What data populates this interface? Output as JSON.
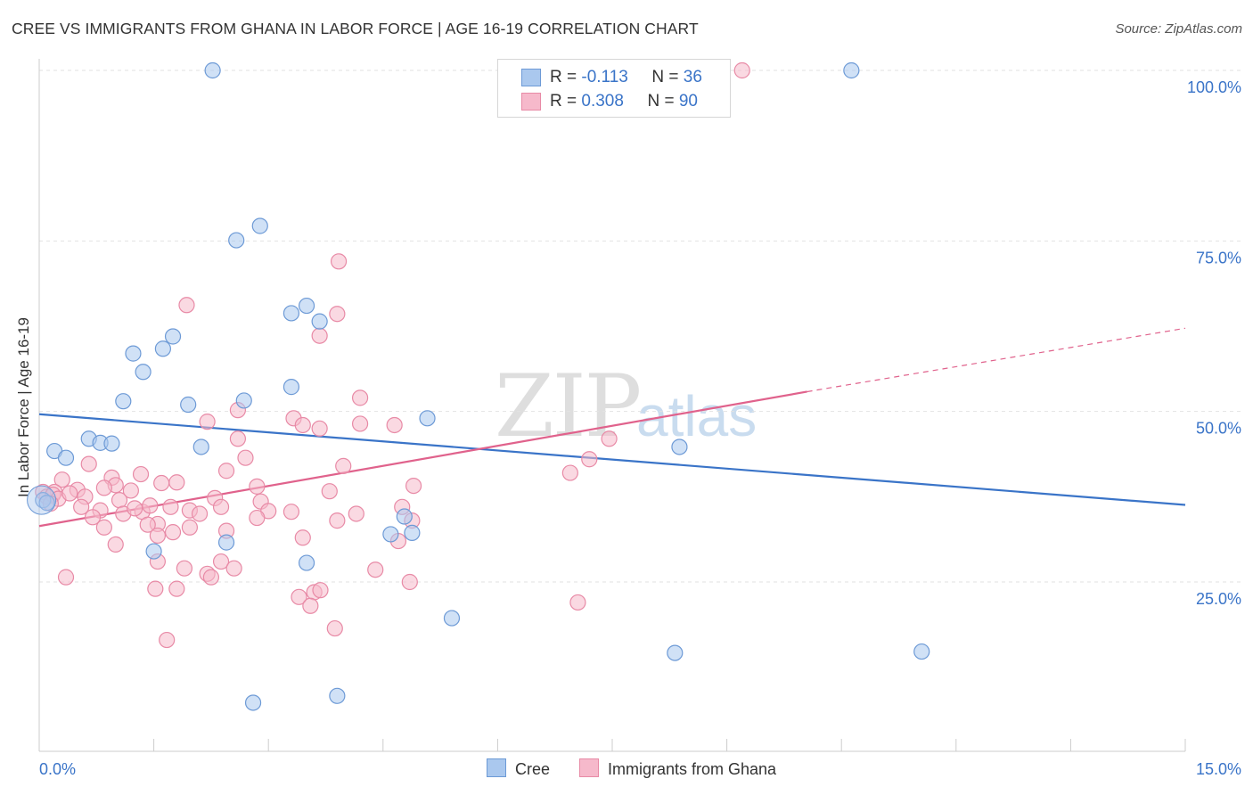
{
  "title": "CREE VS IMMIGRANTS FROM GHANA IN LABOR FORCE | AGE 16-19 CORRELATION CHART",
  "source": "Source: ZipAtlas.com",
  "watermark": {
    "zip": "ZIP",
    "atlas": "atlas"
  },
  "legend": {
    "rows": [
      {
        "r_label": "R = ",
        "r_value": "-0.113",
        "n_label": "N = ",
        "n_value": "36"
      },
      {
        "r_label": "R = ",
        "r_value": "0.308",
        "n_label": "N = ",
        "n_value": "90"
      }
    ]
  },
  "bottom_legend": [
    "Cree",
    "Immigrants from Ghana"
  ],
  "colors": {
    "cree_fill": "#aac8ee",
    "cree_stroke": "#6d9ad6",
    "cree_line": "#3a74c8",
    "ghana_fill": "#f6b9cb",
    "ghana_stroke": "#e88aa6",
    "ghana_line": "#e0628c",
    "axis_text": "#3a74c8",
    "grid": "#e2e2e2"
  },
  "chart_data": {
    "type": "scatter",
    "title": "CREE VS IMMIGRANTS FROM GHANA IN LABOR FORCE | AGE 16-19 CORRELATION CHART",
    "xlabel": "",
    "ylabel": "In Labor Force | Age 16-19",
    "xlim": [
      0,
      15
    ],
    "ylim": [
      0,
      102
    ],
    "x_tick_labels": [
      "0.0%",
      "15.0%"
    ],
    "y_ticks": [
      25,
      50,
      75,
      100
    ],
    "y_tick_labels": [
      "25.0%",
      "50.0%",
      "75.0%",
      "100.0%"
    ],
    "grid": true,
    "legend_placement": "top-center",
    "series": [
      {
        "name": "Cree",
        "r": -0.113,
        "n": 36,
        "trend": {
          "x0": 0,
          "y0": 49.6,
          "x1": 15,
          "y1": 36.3
        },
        "points": [
          [
            2.27,
            100
          ],
          [
            10.63,
            100
          ],
          [
            2.58,
            75.1
          ],
          [
            2.89,
            77.2
          ],
          [
            3.3,
            64.4
          ],
          [
            3.5,
            65.5
          ],
          [
            3.67,
            63.2
          ],
          [
            1.75,
            61.0
          ],
          [
            1.62,
            59.2
          ],
          [
            1.23,
            58.5
          ],
          [
            1.36,
            55.8
          ],
          [
            1.1,
            51.5
          ],
          [
            1.95,
            51.0
          ],
          [
            2.68,
            51.6
          ],
          [
            3.3,
            53.6
          ],
          [
            5.08,
            49.0
          ],
          [
            0.2,
            44.2
          ],
          [
            0.35,
            43.2
          ],
          [
            0.65,
            46.0
          ],
          [
            0.8,
            45.4
          ],
          [
            0.95,
            45.3
          ],
          [
            2.12,
            44.8
          ],
          [
            8.38,
            44.8
          ],
          [
            0.05,
            37.0
          ],
          [
            0.1,
            36.6
          ],
          [
            1.5,
            29.5
          ],
          [
            2.45,
            30.8
          ],
          [
            3.5,
            27.8
          ],
          [
            4.6,
            32.0
          ],
          [
            4.78,
            34.6
          ],
          [
            4.88,
            32.2
          ],
          [
            5.4,
            19.7
          ],
          [
            8.32,
            14.6
          ],
          [
            11.55,
            14.8
          ],
          [
            2.8,
            7.3
          ],
          [
            3.9,
            8.3
          ]
        ]
      },
      {
        "name": "Immigrants from Ghana",
        "r": 0.308,
        "n": 90,
        "trend": {
          "x0": 0,
          "y0": 33.2,
          "x1": 10.05,
          "y1": 52.9,
          "dash_to_x": 15,
          "dash_to_y": 62.2
        },
        "points": [
          [
            9.2,
            100
          ],
          [
            3.92,
            72.0
          ],
          [
            1.93,
            65.6
          ],
          [
            3.9,
            64.3
          ],
          [
            3.67,
            61.1
          ],
          [
            4.2,
            52.0
          ],
          [
            2.6,
            50.2
          ],
          [
            3.33,
            49.0
          ],
          [
            3.45,
            48.0
          ],
          [
            3.67,
            47.5
          ],
          [
            4.2,
            48.2
          ],
          [
            4.65,
            48.0
          ],
          [
            2.2,
            48.5
          ],
          [
            2.6,
            46.0
          ],
          [
            7.46,
            46.0
          ],
          [
            7.2,
            43.0
          ],
          [
            6.95,
            41.0
          ],
          [
            2.7,
            43.2
          ],
          [
            3.98,
            42.0
          ],
          [
            0.65,
            42.3
          ],
          [
            0.95,
            40.3
          ],
          [
            0.3,
            40.0
          ],
          [
            2.45,
            41.3
          ],
          [
            1.33,
            40.8
          ],
          [
            1.6,
            39.5
          ],
          [
            1.8,
            39.6
          ],
          [
            2.85,
            39.0
          ],
          [
            4.9,
            39.1
          ],
          [
            3.8,
            38.3
          ],
          [
            1.0,
            39.2
          ],
          [
            1.2,
            38.4
          ],
          [
            0.85,
            38.8
          ],
          [
            0.5,
            38.5
          ],
          [
            0.6,
            37.5
          ],
          [
            0.2,
            38.2
          ],
          [
            0.05,
            38.2
          ],
          [
            0.1,
            37.5
          ],
          [
            0.18,
            37.8
          ],
          [
            0.25,
            37.2
          ],
          [
            0.4,
            38.0
          ],
          [
            0.15,
            36.5
          ],
          [
            0.55,
            36.0
          ],
          [
            0.8,
            35.5
          ],
          [
            1.05,
            37.0
          ],
          [
            1.35,
            35.3
          ],
          [
            1.45,
            36.2
          ],
          [
            1.72,
            36.0
          ],
          [
            2.3,
            37.3
          ],
          [
            2.38,
            36.0
          ],
          [
            2.9,
            36.8
          ],
          [
            3.0,
            35.4
          ],
          [
            3.3,
            35.3
          ],
          [
            4.15,
            35.0
          ],
          [
            4.75,
            36.0
          ],
          [
            4.88,
            34.0
          ],
          [
            0.7,
            34.5
          ],
          [
            1.1,
            35.0
          ],
          [
            1.25,
            35.8
          ],
          [
            1.55,
            33.5
          ],
          [
            1.97,
            35.5
          ],
          [
            2.1,
            35.0
          ],
          [
            2.85,
            34.4
          ],
          [
            0.85,
            33.0
          ],
          [
            1.42,
            33.4
          ],
          [
            1.75,
            32.3
          ],
          [
            1.97,
            33.0
          ],
          [
            2.45,
            32.5
          ],
          [
            1.55,
            31.8
          ],
          [
            3.45,
            31.5
          ],
          [
            1.0,
            30.5
          ],
          [
            1.55,
            28.0
          ],
          [
            2.38,
            28.0
          ],
          [
            1.9,
            27.0
          ],
          [
            2.2,
            26.2
          ],
          [
            2.25,
            25.7
          ],
          [
            0.35,
            25.7
          ],
          [
            4.4,
            26.8
          ],
          [
            4.85,
            25.0
          ],
          [
            1.52,
            24.0
          ],
          [
            1.8,
            24.0
          ],
          [
            3.6,
            23.5
          ],
          [
            3.68,
            23.8
          ],
          [
            3.4,
            22.8
          ],
          [
            3.55,
            21.5
          ],
          [
            7.05,
            22.0
          ],
          [
            3.87,
            18.2
          ],
          [
            1.67,
            16.5
          ],
          [
            4.7,
            31.0
          ],
          [
            3.9,
            34.0
          ],
          [
            2.55,
            27.0
          ]
        ]
      }
    ]
  }
}
